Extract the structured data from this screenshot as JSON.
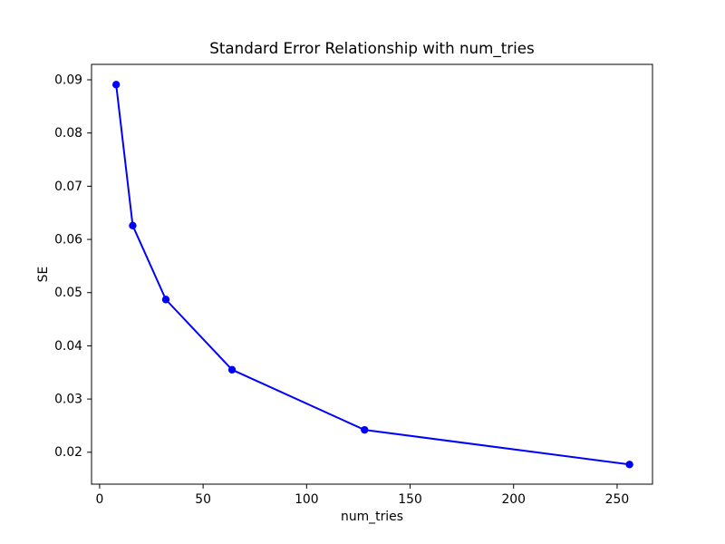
{
  "figure": {
    "background": "#ffffff"
  },
  "chart_data": {
    "type": "line",
    "title": "Standard Error Relationship with num_tries",
    "xlabel": "num_tries",
    "ylabel": "SE",
    "series": [
      {
        "x": [
          8,
          16,
          32,
          64,
          128,
          256
        ],
        "y": [
          0.0891,
          0.0626,
          0.0487,
          0.0355,
          0.0242,
          0.0177
        ],
        "color": "#0000ff",
        "marker": "circle",
        "line_style": "solid"
      }
    ],
    "xlim": [
      -3.9,
      267.1
    ],
    "ylim": [
      0.014,
      0.0929
    ],
    "x_ticks": {
      "values": [
        0,
        50,
        100,
        150,
        200,
        250
      ],
      "labels": [
        "0",
        "50",
        "100",
        "150",
        "200",
        "250"
      ]
    },
    "y_ticks": {
      "values": [
        0.02,
        0.03,
        0.04,
        0.05,
        0.06,
        0.07,
        0.08,
        0.09
      ],
      "labels": [
        "0.02",
        "0.03",
        "0.04",
        "0.05",
        "0.06",
        "0.07",
        "0.08",
        "0.09"
      ]
    },
    "grid": false,
    "legend": "none",
    "spine_color": "#000000",
    "text_color": "#000000",
    "plot_background": "#ffffff"
  }
}
